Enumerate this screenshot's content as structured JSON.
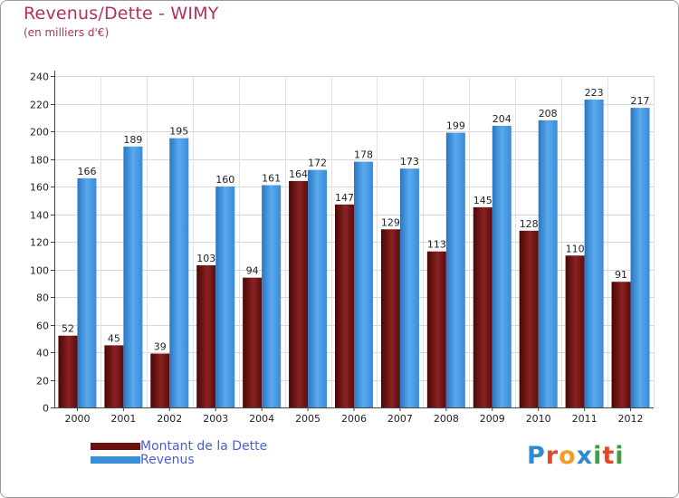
{
  "chart_data": {
    "type": "bar",
    "title": "Revenus/Dette - WIMY",
    "subtitle": "(en milliers d'€)",
    "categories": [
      "2000",
      "2001",
      "2002",
      "2003",
      "2004",
      "2005",
      "2006",
      "2007",
      "2008",
      "2009",
      "2010",
      "2011",
      "2012"
    ],
    "series": [
      {
        "name": "Montant de la Dette",
        "color": "#7a1a1a",
        "values": [
          52,
          45,
          39,
          103,
          94,
          164,
          147,
          129,
          113,
          145,
          128,
          110,
          91
        ]
      },
      {
        "name": "Revenus",
        "color": "#3a8fd8",
        "values": [
          166,
          189,
          195,
          160,
          161,
          172,
          178,
          173,
          199,
          204,
          208,
          223,
          217
        ]
      }
    ],
    "ylim": [
      0,
      240
    ],
    "yticks": [
      0,
      20,
      40,
      60,
      80,
      100,
      120,
      140,
      160,
      180,
      200,
      220,
      240
    ],
    "grid": true,
    "legend": "bottom-left"
  },
  "logo": {
    "text": "Proxiti",
    "letter_colors": [
      "#2f8ad0",
      "#e0482a",
      "#f0a020",
      "#2f8ad0",
      "#3aa040",
      "#e0482a",
      "#3aa040"
    ]
  }
}
